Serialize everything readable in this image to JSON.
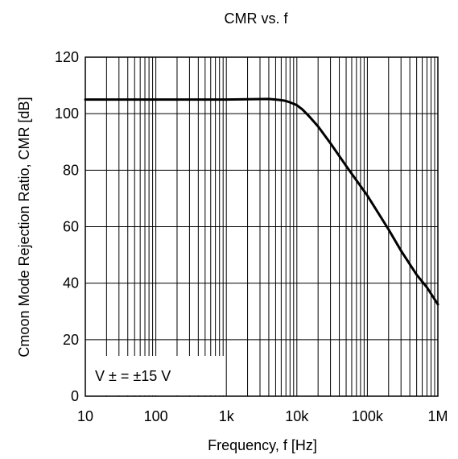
{
  "chart_data": {
    "type": "line",
    "title": "CMR vs. f",
    "xlabel": "Frequency, f [Hz]",
    "ylabel": "Cmoon Mode Rejection Ratio,  CMR [dB]",
    "xscale": "log",
    "xlim": [
      10,
      1000000
    ],
    "ylim": [
      0,
      120
    ],
    "x_ticks": [
      10,
      100,
      1000,
      10000,
      100000,
      1000000
    ],
    "x_tick_labels": [
      "10",
      "100",
      "1k",
      "10k",
      "100k",
      "1M"
    ],
    "y_ticks": [
      0,
      20,
      40,
      60,
      80,
      100,
      120
    ],
    "y_tick_labels": [
      "0",
      "20",
      "40",
      "60",
      "80",
      "100",
      "120"
    ],
    "grid": true,
    "annotation": "V ± = ±15 V",
    "line_color": "#000000",
    "series": [
      {
        "x": [
          10,
          100,
          1000,
          4000,
          5000,
          6000,
          7000,
          8000,
          9000,
          10000,
          12000,
          15000,
          20000,
          30000,
          50000,
          100000,
          200000,
          300000,
          500000,
          700000,
          1000000
        ],
        "values": [
          105,
          105,
          105,
          105.2,
          105,
          104.8,
          104.5,
          104,
          103.5,
          103,
          101.5,
          99,
          95.5,
          89.5,
          81.5,
          71,
          59,
          51.5,
          43,
          38.5,
          32.5
        ]
      }
    ]
  }
}
